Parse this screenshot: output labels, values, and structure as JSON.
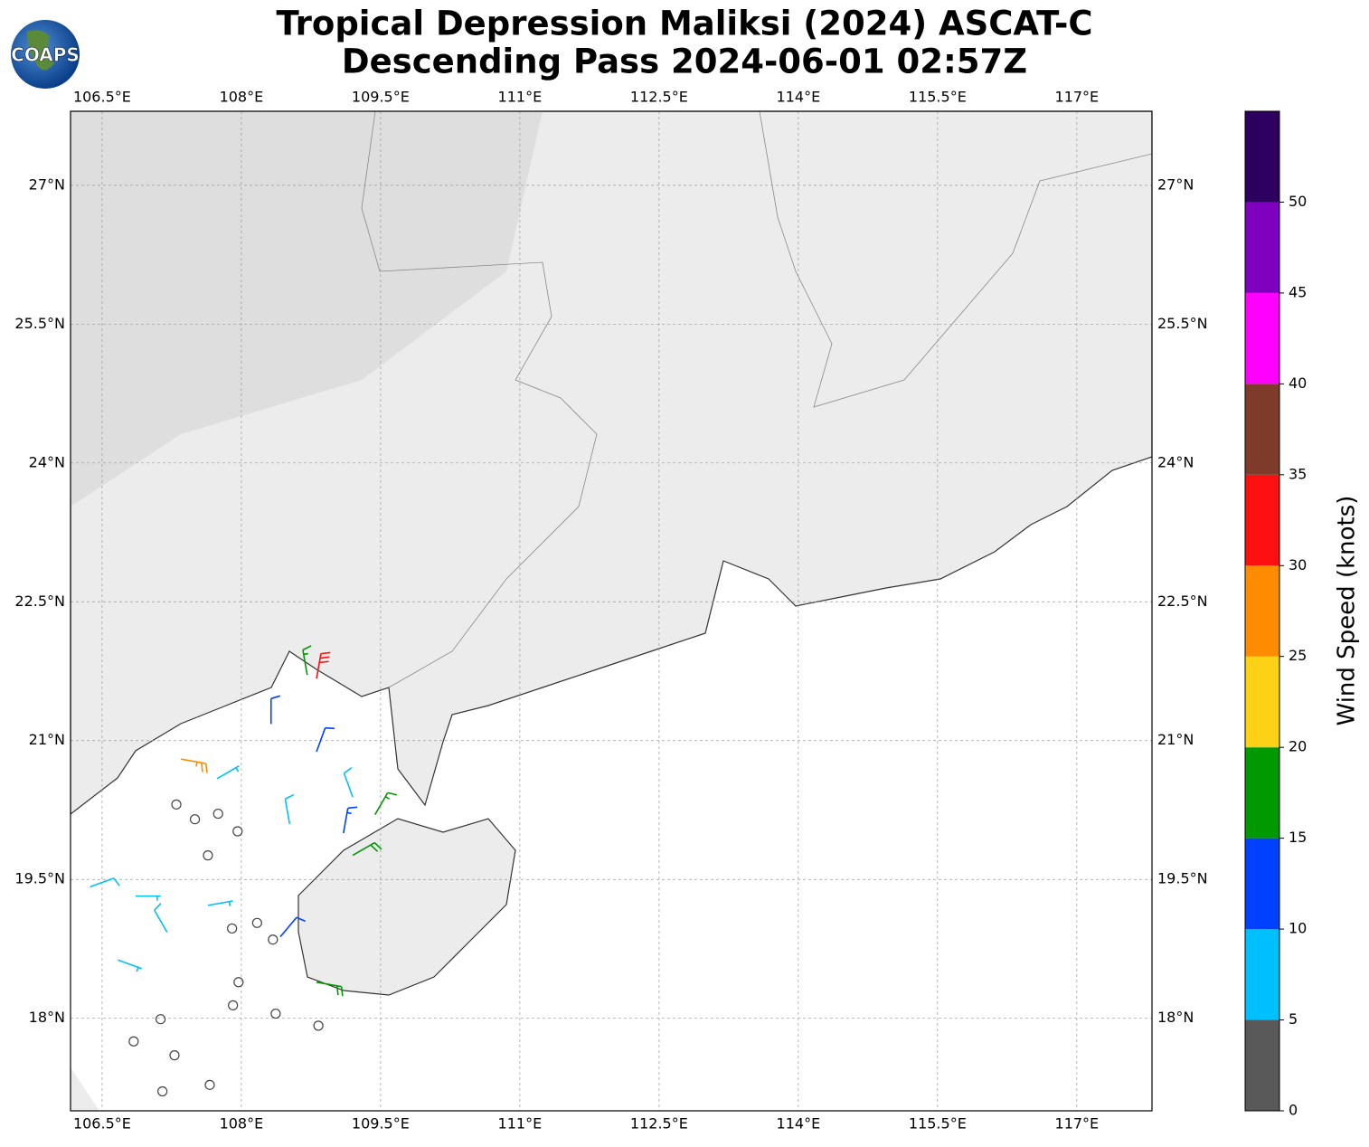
{
  "logo": "COAPS",
  "chart_data": {
    "type": "barbs",
    "title": "Tropical Depression Maliksi (2024) ASCAT-C",
    "subtitle": "Descending Pass 2024-06-01 02:57Z",
    "xlim": [
      106.16,
      117.81
    ],
    "ylim": [
      17.0,
      27.8
    ],
    "xticks": [
      {
        "value": 106.5,
        "label": "106.5°E"
      },
      {
        "value": 108,
        "label": "108°E"
      },
      {
        "value": 109.5,
        "label": "109.5°E"
      },
      {
        "value": 111,
        "label": "111°E"
      },
      {
        "value": 112.5,
        "label": "112.5°E"
      },
      {
        "value": 114,
        "label": "114°E"
      },
      {
        "value": 115.5,
        "label": "115.5°E"
      },
      {
        "value": 117,
        "label": "117°E"
      }
    ],
    "yticks": [
      {
        "value": 18,
        "label": "18°N"
      },
      {
        "value": 19.5,
        "label": "19.5°N"
      },
      {
        "value": 21,
        "label": "21°N"
      },
      {
        "value": 22.5,
        "label": "22.5°N"
      },
      {
        "value": 24,
        "label": "24°N"
      },
      {
        "value": 25.5,
        "label": "25.5°N"
      },
      {
        "value": 27,
        "label": "27°N"
      }
    ],
    "grid": true,
    "colorbar_label": "Wind Speed (knots)",
    "clim": [
      0,
      55
    ],
    "cticks": [
      0,
      5,
      10,
      15,
      20,
      25,
      30,
      35,
      40,
      45,
      50
    ],
    "colors": [
      "#595959",
      "#00bfff",
      "#0040ff",
      "#009900",
      "#fcd116",
      "#ff8c00",
      "#ff1010",
      "#7f3b2a",
      "#ff00ff",
      "#8000c0",
      "#2d0060"
    ],
    "lon": [
      107.3,
      107.5,
      107.75,
      107.96,
      107.64,
      107.9,
      108.17,
      108.34,
      107.97,
      107.91,
      107.13,
      106.84,
      107.28,
      107.66,
      108.37,
      108.83,
      107.15,
      108.32,
      108.81,
      109.2,
      108.52,
      107.2,
      106.37,
      109.44,
      109.1,
      108.42,
      109.2,
      108.81,
      108.71,
      108.81,
      107.35,
      106.86,
      107.64,
      106.67,
      107.74
    ],
    "lat": [
      20.31,
      20.15,
      20.21,
      20.02,
      19.76,
      18.97,
      19.03,
      18.85,
      18.39,
      18.14,
      17.99,
      17.75,
      17.6,
      17.28,
      18.05,
      17.92,
      17.21,
      21.18,
      20.88,
      20.39,
      20.1,
      18.93,
      19.42,
      20.2,
      20.0,
      18.88,
      19.76,
      18.39,
      21.71,
      21.67,
      20.8,
      19.32,
      19.22,
      18.63,
      20.59
    ],
    "speed": [
      2,
      2,
      2,
      2,
      2,
      2,
      2,
      2,
      2,
      2,
      2,
      2,
      2,
      2,
      2,
      2,
      2,
      10,
      10,
      8,
      8,
      8,
      8,
      15,
      13,
      12,
      18,
      18,
      17,
      32,
      27,
      6,
      6,
      5,
      6
    ],
    "direction": [
      0,
      0,
      0,
      0,
      0,
      0,
      0,
      0,
      0,
      0,
      0,
      0,
      0,
      0,
      0,
      0,
      0,
      0,
      20,
      340,
      350,
      330,
      70,
      30,
      10,
      40,
      60,
      100,
      350,
      10,
      100,
      90,
      80,
      110,
      60
    ]
  }
}
